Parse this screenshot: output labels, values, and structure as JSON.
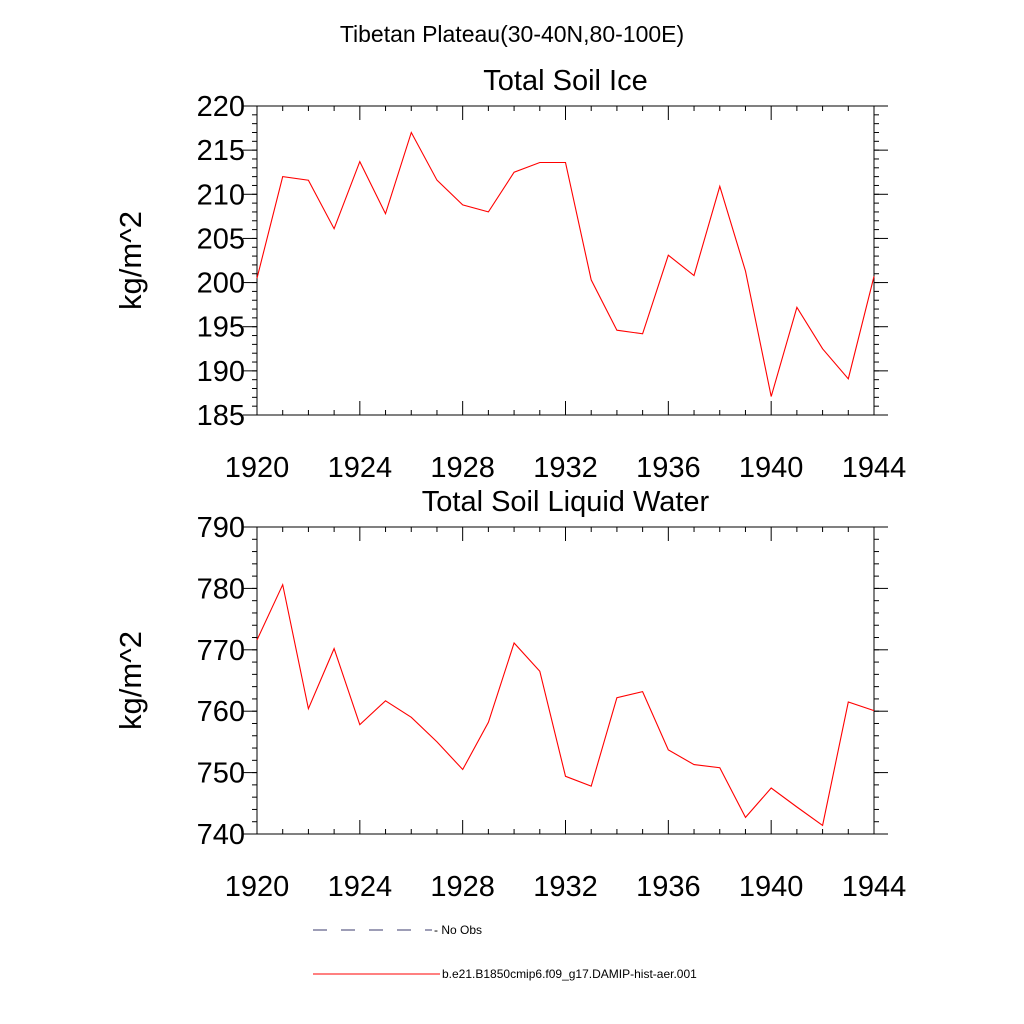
{
  "figure": {
    "suptitle": "Tibetan Plateau(30-40N,80-100E)"
  },
  "chart_data": [
    {
      "type": "line",
      "title": "Total Soil Ice",
      "xlabel": "",
      "ylabel": "kg/m^2",
      "xlim": [
        1920,
        1944
      ],
      "ylim": [
        185,
        220
      ],
      "xticks": [
        "1920",
        "1924",
        "1928",
        "1932",
        "1936",
        "1940",
        "1944"
      ],
      "yticks": [
        "185",
        "190",
        "195",
        "200",
        "205",
        "210",
        "215",
        "220"
      ],
      "series": [
        {
          "name": "b.e21.B1850cmip6.f09_g17.DAMIP-hist-aer.001",
          "color": "#ff0000",
          "x": [
            1920,
            1921,
            1922,
            1923,
            1924,
            1925,
            1926,
            1927,
            1928,
            1929,
            1930,
            1931,
            1932,
            1933,
            1934,
            1935,
            1936,
            1937,
            1938,
            1939,
            1940,
            1941,
            1942,
            1943,
            1944
          ],
          "y": [
            200.5,
            212.0,
            211.6,
            206.1,
            213.7,
            207.8,
            217.0,
            211.6,
            208.8,
            208.0,
            212.5,
            213.6,
            213.6,
            200.3,
            194.6,
            194.2,
            203.1,
            200.8,
            210.9,
            201.3,
            187.1,
            197.2,
            192.5,
            189.1,
            200.7
          ]
        }
      ]
    },
    {
      "type": "line",
      "title": "Total Soil Liquid Water",
      "xlabel": "",
      "ylabel": "kg/m^2",
      "xlim": [
        1920,
        1944
      ],
      "ylim": [
        740,
        790
      ],
      "xticks": [
        "1920",
        "1924",
        "1928",
        "1932",
        "1936",
        "1940",
        "1944"
      ],
      "yticks": [
        "740",
        "750",
        "760",
        "770",
        "780",
        "790"
      ],
      "series": [
        {
          "name": "b.e21.B1850cmip6.f09_g17.DAMIP-hist-aer.001",
          "color": "#ff0000",
          "x": [
            1920,
            1921,
            1922,
            1923,
            1924,
            1925,
            1926,
            1927,
            1928,
            1929,
            1930,
            1931,
            1932,
            1933,
            1934,
            1935,
            1936,
            1937,
            1938,
            1939,
            1940,
            1941,
            1942,
            1943,
            1944
          ],
          "y": [
            771.6,
            780.6,
            760.4,
            770.2,
            757.8,
            761.7,
            759.0,
            755.0,
            750.5,
            758.2,
            771.1,
            766.5,
            749.4,
            747.8,
            762.2,
            763.2,
            753.7,
            751.3,
            750.8,
            742.7,
            747.5,
            744.4,
            741.4,
            761.5,
            760.1
          ]
        }
      ]
    }
  ],
  "legend": {
    "items": [
      {
        "label": "- No Obs",
        "style": "dashed",
        "color": "#3b3b6e"
      },
      {
        "label": "b.e21.B1850cmip6.f09_g17.DAMIP-hist-aer.001",
        "style": "solid",
        "color": "#ff0000"
      }
    ]
  }
}
